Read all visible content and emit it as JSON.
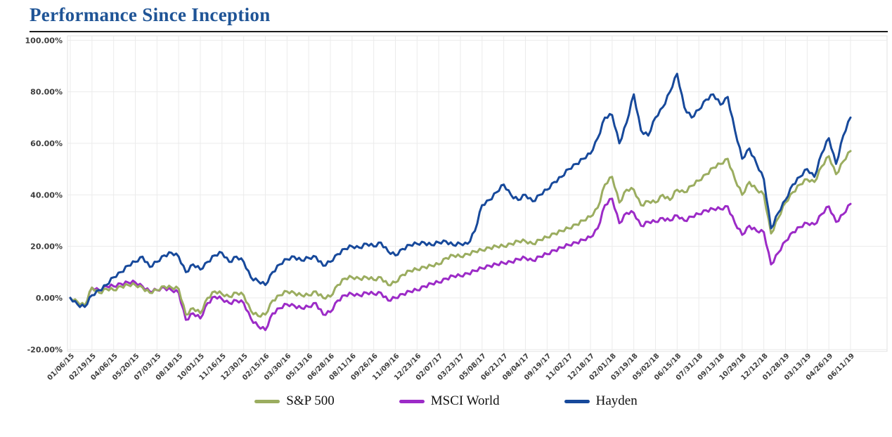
{
  "page": {
    "title": "Performance Since Inception"
  },
  "colors": {
    "title": "#1F5496",
    "title_rule": "#1c1c1c",
    "axis_text": "#3d3d3d",
    "gridline": "#ebebeb",
    "plot_border": "#e0e0e0",
    "background": "#ffffff"
  },
  "chart_data": {
    "type": "line",
    "title": "Performance Since Inception",
    "xlabel": "",
    "ylabel": "",
    "ylim": [
      -20,
      100
    ],
    "y_tick_step": 20,
    "grid": true,
    "legend_position": "bottom",
    "x_label_rotation": -45,
    "y_tick_labels": [
      "100.00%",
      "80.00%",
      "60.00%",
      "40.00%",
      "20.00%",
      "0.00%",
      "-20.00%"
    ],
    "x_tick_labels": [
      "01/06/15",
      "02/19/15",
      "04/06/15",
      "05/20/15",
      "07/03/15",
      "08/18/15",
      "10/01/15",
      "11/16/15",
      "12/30/15",
      "02/15/16",
      "03/30/16",
      "05/13/16",
      "06/28/16",
      "08/11/16",
      "09/26/16",
      "11/09/16",
      "12/23/16",
      "02/07/17",
      "03/23/17",
      "05/08/17",
      "06/21/17",
      "08/04/17",
      "09/19/17",
      "11/02/17",
      "12/18/17",
      "02/01/18",
      "03/19/18",
      "05/02/18",
      "06/15/18",
      "07/31/18",
      "09/13/18",
      "10/29/18",
      "12/12/18",
      "01/28/19",
      "03/13/19",
      "04/26/19",
      "06/11/19"
    ],
    "points_per_label_interval": 3,
    "value_unit": "percent",
    "series": [
      {
        "name": "S&P 500",
        "color": "#9BAD60",
        "values": [
          0,
          -1.5,
          -3,
          4,
          2,
          3.5,
          3,
          4.5,
          5,
          5,
          4,
          2,
          3,
          4.5,
          4,
          3.5,
          -6.5,
          -4,
          -6,
          0,
          2.5,
          1.5,
          0.5,
          2,
          1,
          -5,
          -7,
          -6.5,
          -1,
          1,
          2.5,
          2,
          1,
          1,
          2.5,
          0,
          0.5,
          5,
          7.5,
          8,
          7.5,
          8,
          7,
          8,
          5,
          6,
          9,
          10.5,
          11,
          12,
          12.5,
          13,
          15.5,
          16.5,
          16,
          17,
          18,
          18.5,
          19.5,
          20,
          20,
          21,
          22,
          22,
          21,
          22.5,
          23.5,
          25,
          26,
          27,
          28.5,
          30,
          31.5,
          35,
          44,
          47,
          37,
          42,
          42,
          36,
          37.5,
          37,
          40,
          38,
          42,
          41,
          43.5,
          45.5,
          48,
          50.5,
          52,
          54,
          46,
          40,
          45,
          42,
          40,
          25,
          31,
          37,
          41,
          44,
          46,
          45,
          51,
          55,
          48,
          53,
          57
        ]
      },
      {
        "name": "MSCI World",
        "color": "#9C2BC7",
        "values": [
          0,
          -2,
          -3.5,
          4,
          3,
          4.5,
          4.5,
          5.5,
          6,
          6,
          4.5,
          2.5,
          3,
          4,
          3,
          2,
          -8.5,
          -6,
          -8,
          -2,
          0.5,
          -0.5,
          -2,
          -1,
          -2,
          -8,
          -11,
          -12.5,
          -6,
          -4,
          -2.5,
          -3,
          -4,
          -3.5,
          -2,
          -6.5,
          -5.5,
          -1,
          1,
          1.5,
          1,
          2,
          1.5,
          2,
          -1,
          0,
          1.5,
          2.5,
          3,
          4.5,
          5.5,
          6,
          7.5,
          8.5,
          8.5,
          9.5,
          10.5,
          11.5,
          12.5,
          13,
          13.5,
          14,
          15,
          15.5,
          14.5,
          16,
          17,
          18.5,
          19.5,
          20.5,
          21.5,
          22.5,
          23.5,
          27,
          36,
          38.5,
          29,
          33,
          33,
          28,
          29.5,
          29.5,
          31,
          30,
          32,
          30,
          31.5,
          32.5,
          34,
          34.5,
          34.5,
          35.5,
          29,
          24.5,
          28,
          26,
          25.5,
          13,
          17.5,
          22,
          25.5,
          27.5,
          29,
          28.5,
          32.5,
          35.5,
          29.5,
          32.5,
          36.5
        ]
      },
      {
        "name": "Hayden",
        "color": "#17499B",
        "values": [
          0,
          -2.5,
          -3.5,
          1,
          3,
          5,
          8,
          10,
          12.5,
          14,
          16,
          12,
          14,
          16.5,
          17.5,
          16,
          10,
          13,
          11,
          14,
          16.5,
          17.5,
          14,
          16,
          14,
          8,
          6.5,
          5,
          10,
          13,
          15,
          16,
          14.5,
          15.5,
          16,
          12.5,
          14,
          17,
          19,
          20,
          19.5,
          21,
          20,
          21.5,
          18,
          16.5,
          19,
          20.5,
          21,
          21.5,
          20.5,
          21.5,
          22,
          20.5,
          21,
          21,
          26,
          36,
          38,
          41,
          44,
          40,
          38,
          40,
          37.5,
          40,
          42,
          45,
          47,
          50,
          52,
          54,
          56,
          62,
          70,
          71,
          60,
          68,
          79,
          65,
          63,
          70,
          74,
          80,
          87,
          74,
          70,
          73,
          77,
          79,
          75,
          78,
          65,
          54,
          58,
          52,
          46,
          27,
          33,
          38,
          44,
          47,
          50,
          47,
          56,
          62,
          52,
          63,
          70
        ]
      }
    ]
  }
}
